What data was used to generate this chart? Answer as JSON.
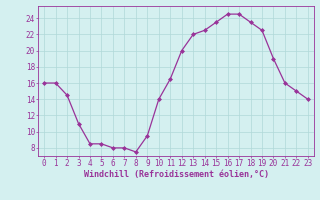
{
  "x": [
    0,
    1,
    2,
    3,
    4,
    5,
    6,
    7,
    8,
    9,
    10,
    11,
    12,
    13,
    14,
    15,
    16,
    17,
    18,
    19,
    20,
    21,
    22,
    23
  ],
  "y": [
    16,
    16,
    14.5,
    11,
    8.5,
    8.5,
    8,
    8,
    7.5,
    9.5,
    14,
    16.5,
    20,
    22,
    22.5,
    23.5,
    24.5,
    24.5,
    23.5,
    22.5,
    19,
    16,
    15,
    14
  ],
  "line_color": "#993399",
  "marker": "D",
  "markersize": 2,
  "linewidth": 0.9,
  "background_color": "#d4f0f0",
  "grid_color": "#b0d8d8",
  "xlabel": "Windchill (Refroidissement éolien,°C)",
  "xlabel_fontsize": 6.0,
  "yticks": [
    8,
    10,
    12,
    14,
    16,
    18,
    20,
    22,
    24
  ],
  "ylim": [
    7.0,
    25.5
  ],
  "xlim": [
    -0.5,
    23.5
  ],
  "tick_fontsize": 5.5,
  "tick_color": "#993399",
  "spine_color": "#993399"
}
